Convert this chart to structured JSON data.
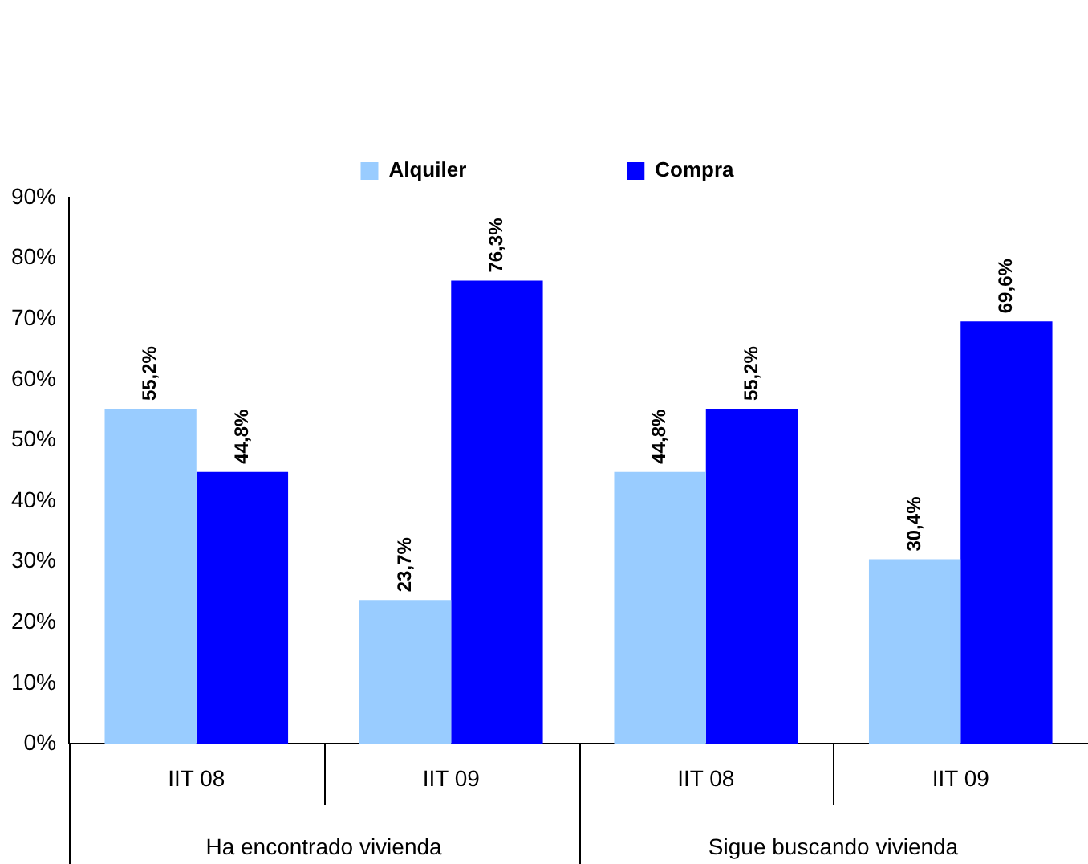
{
  "chart_data": {
    "type": "bar",
    "categories": [
      "IIT 08",
      "IIT 09",
      "IIT 08",
      "IIT 09"
    ],
    "annotations": [
      "Ha encontrado vivienda",
      "Sigue buscando vivienda"
    ],
    "series": [
      {
        "name": "Alquiler",
        "color": "#99ccff",
        "values": [
          55.2,
          23.7,
          44.8,
          30.4
        ],
        "value_labels": [
          "55,2%",
          "23,7%",
          "44,8%",
          "30,4%"
        ]
      },
      {
        "name": "Compra",
        "color": "#0000ff",
        "values": [
          44.8,
          76.3,
          55.2,
          69.6
        ],
        "value_labels": [
          "44,8%",
          "76,3%",
          "55,2%",
          "69,6%"
        ]
      }
    ],
    "ylim": [
      0,
      90
    ],
    "yticks": [
      {
        "value": 0,
        "label": "0%"
      },
      {
        "value": 10,
        "label": "10%"
      },
      {
        "value": 20,
        "label": "20%"
      },
      {
        "value": 30,
        "label": "30%"
      },
      {
        "value": 40,
        "label": "40%"
      },
      {
        "value": 50,
        "label": "50%"
      },
      {
        "value": 60,
        "label": "60%"
      },
      {
        "value": 70,
        "label": "70%"
      },
      {
        "value": 80,
        "label": "80%"
      },
      {
        "value": 90,
        "label": "90%"
      }
    ],
    "grid": false,
    "legend": "top"
  }
}
